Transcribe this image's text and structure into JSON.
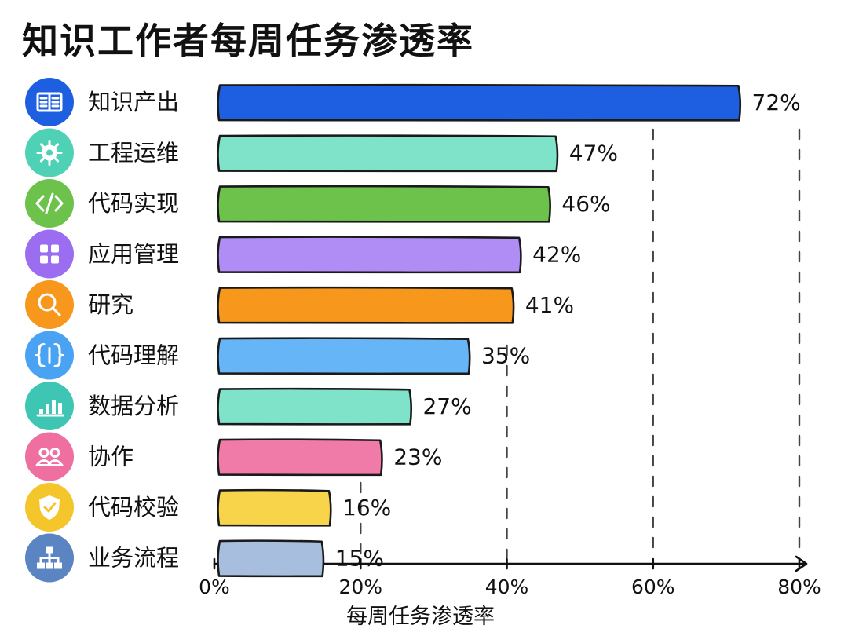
{
  "chart_data": {
    "type": "bar",
    "orientation": "horizontal",
    "title": "知识工作者每周任务渗透率",
    "xlabel": "每周任务渗透率",
    "xlim": [
      0,
      80
    ],
    "xticks": [
      "0%",
      "20%",
      "40%",
      "60%",
      "80%"
    ],
    "xtick_values": [
      0,
      20,
      40,
      60,
      80
    ],
    "grid": "dashed vertical at 20%, 40%, 60%, 80%",
    "categories": [
      "知识产出",
      "工程运维",
      "代码实现",
      "应用管理",
      "研究",
      "代码理解",
      "数据分析",
      "协作",
      "代码校验",
      "业务流程"
    ],
    "values": [
      72,
      47,
      46,
      42,
      41,
      35,
      27,
      23,
      16,
      15
    ],
    "value_labels": [
      "72%",
      "47%",
      "46%",
      "42%",
      "41%",
      "35%",
      "27%",
      "23%",
      "16%",
      "15%"
    ],
    "bar_colors": [
      "#1d5fe0",
      "#7ee3c8",
      "#6cc24a",
      "#b08cf5",
      "#f7981d",
      "#66b5f7",
      "#7ee3c8",
      "#f07aa8",
      "#f7d44a",
      "#a8bede"
    ],
    "icons": [
      "book-icon",
      "gear-icon",
      "code-icon",
      "apps-grid-icon",
      "magnifier-icon",
      "braces-icon",
      "bar-chart-icon",
      "people-icon",
      "shield-check-icon",
      "flowchart-icon"
    ],
    "icon_colors": [
      "#1d5fe0",
      "#4fd1b5",
      "#6cc24a",
      "#9b6df0",
      "#f7981d",
      "#4aa3f2",
      "#3ec5b4",
      "#ee6fa0",
      "#f5c52c",
      "#5a84c2"
    ]
  }
}
